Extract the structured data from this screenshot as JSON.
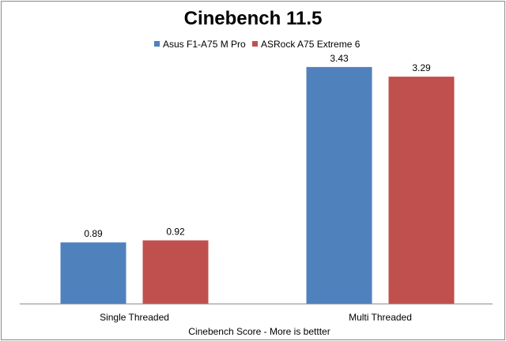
{
  "chart_data": {
    "type": "bar",
    "title": "Cinebench 11.5",
    "categories": [
      "Single Threaded",
      "Multi Threaded"
    ],
    "series": [
      {
        "name": "Asus F1-A75 M Pro",
        "values": [
          0.89,
          3.43
        ],
        "labels": [
          "0.89",
          "3.43"
        ],
        "color": "#4f81bd"
      },
      {
        "name": "ASRock A75 Extreme 6",
        "values": [
          0.92,
          3.29
        ],
        "labels": [
          "0.92",
          "3.29"
        ],
        "color": "#c0504d"
      }
    ],
    "xlabel": "Cinebench Score  - More is bettter",
    "ylabel": "",
    "ylim": [
      0,
      3.6
    ],
    "grid": false,
    "legend_position": "top"
  }
}
